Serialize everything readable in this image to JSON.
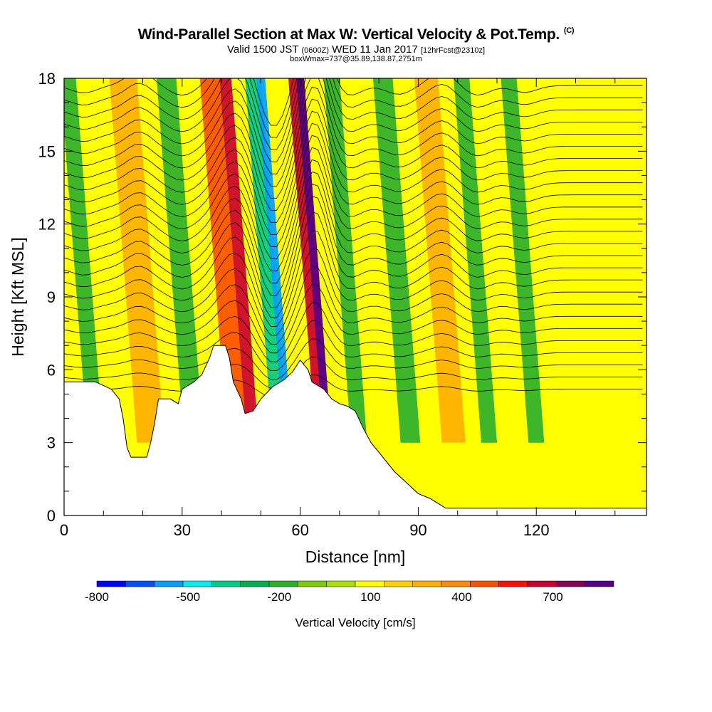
{
  "header": {
    "title": "Wind-Parallel Section at Max W: Vertical Velocity & Pot.Temp.",
    "copyright": "(C)",
    "subtitle_a": "Valid 1500 JST",
    "subtitle_b": "(0600Z)",
    "subtitle_c": "WED 11 Jan 2017",
    "subtitle_d": "[12hrFcst@2310z]",
    "subtitle2": "boxWmax=737@35.89,138.87,2751m"
  },
  "chart_data": {
    "type": "heatmap",
    "xlabel": "Distance [nm]",
    "ylabel": "Height [Kft MSL]",
    "xlim": [
      0,
      148
    ],
    "ylim": [
      0,
      18
    ],
    "x_ticks": [
      0,
      30,
      60,
      90,
      120
    ],
    "y_ticks": [
      0,
      3,
      6,
      9,
      12,
      15,
      18
    ],
    "colorbar": {
      "label": "Vertical Velocity [cm/s]",
      "tick_labels": [
        "-800",
        "-500",
        "-200",
        "100",
        "400",
        "700"
      ],
      "tick_values": [
        -800,
        -500,
        -200,
        100,
        400,
        700
      ],
      "range": [
        -800,
        900
      ],
      "colors": [
        "#0000ff",
        "#0050ff",
        "#00a0ff",
        "#00eeee",
        "#00cc88",
        "#00b050",
        "#2cb02c",
        "#7ccc00",
        "#a8e000",
        "#ffff00",
        "#ffd000",
        "#ffb000",
        "#ff8c00",
        "#ff5000",
        "#ff1000",
        "#cc0030",
        "#880055",
        "#550088"
      ]
    },
    "terrain": [
      [
        0,
        5.5
      ],
      [
        8,
        5.5
      ],
      [
        12,
        5.2
      ],
      [
        14,
        4.8
      ],
      [
        15,
        4.0
      ],
      [
        16,
        2.8
      ],
      [
        17,
        2.4
      ],
      [
        21,
        2.4
      ],
      [
        22,
        3.0
      ],
      [
        23,
        3.8
      ],
      [
        24,
        4.8
      ],
      [
        27,
        4.8
      ],
      [
        29,
        4.6
      ],
      [
        30,
        5.2
      ],
      [
        33,
        5.5
      ],
      [
        35,
        5.8
      ],
      [
        37,
        6.5
      ],
      [
        38,
        7.0
      ],
      [
        41,
        7.0
      ],
      [
        42,
        6.5
      ],
      [
        43,
        5.5
      ],
      [
        45,
        4.8
      ],
      [
        46,
        4.2
      ],
      [
        48,
        4.3
      ],
      [
        50,
        4.8
      ],
      [
        53,
        5.3
      ],
      [
        56,
        5.6
      ],
      [
        58,
        5.9
      ],
      [
        60,
        6.4
      ],
      [
        62,
        6.0
      ],
      [
        63,
        5.5
      ],
      [
        64,
        5.4
      ],
      [
        66,
        5.2
      ],
      [
        68,
        4.8
      ],
      [
        70,
        4.6
      ],
      [
        72,
        4.5
      ],
      [
        74,
        4.3
      ],
      [
        76,
        3.6
      ],
      [
        78,
        3.0
      ],
      [
        80,
        2.6
      ],
      [
        82,
        2.2
      ],
      [
        84,
        1.8
      ],
      [
        86,
        1.5
      ],
      [
        88,
        1.2
      ],
      [
        90,
        0.9
      ],
      [
        93,
        0.7
      ],
      [
        95,
        0.5
      ],
      [
        97,
        0.3
      ],
      [
        148,
        0.3
      ]
    ],
    "velocity_features": [
      {
        "x": 8,
        "top": 18,
        "width": 4,
        "value": -150
      },
      {
        "x": 22,
        "top": 18,
        "width": 7,
        "value": 300
      },
      {
        "x": 33,
        "top": 18,
        "width": 5,
        "value": -200
      },
      {
        "x": 44,
        "top": 18,
        "width": 5,
        "value": 500
      },
      {
        "x": 48,
        "top": 18,
        "width": 3,
        "value": 650
      },
      {
        "x": 55,
        "top": 18,
        "width": 4,
        "value": -400
      },
      {
        "x": 57,
        "top": 18,
        "width": 2.2,
        "value": -520
      },
      {
        "x": 66,
        "top": 18,
        "width": 4,
        "value": 650
      },
      {
        "x": 67,
        "top": 18,
        "width": 2,
        "value": 880
      },
      {
        "x": 75,
        "top": 18,
        "width": 4,
        "value": -230
      },
      {
        "x": 88,
        "top": 18,
        "width": 5,
        "value": -180
      },
      {
        "x": 99,
        "top": 18,
        "width": 6,
        "value": 280
      },
      {
        "x": 108,
        "top": 18,
        "width": 4,
        "value": -200
      },
      {
        "x": 120,
        "top": 18,
        "width": 4,
        "value": -140
      }
    ]
  }
}
